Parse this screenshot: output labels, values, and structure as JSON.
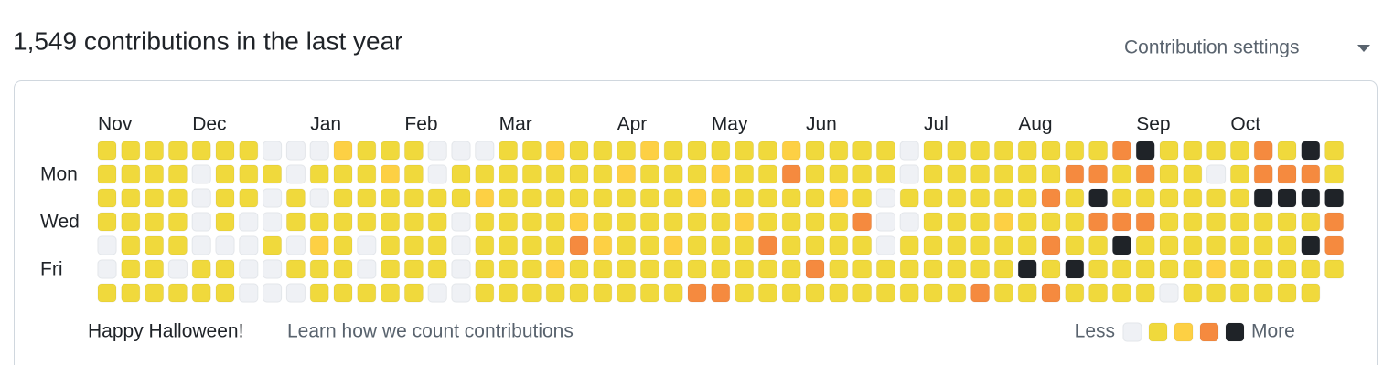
{
  "header": {
    "title": "1,549 contributions in the last year",
    "settings": "Contribution settings"
  },
  "graph": {
    "months": [
      "Nov",
      "Dec",
      "Jan",
      "Feb",
      "Mar",
      "Apr",
      "May",
      "Jun",
      "Jul",
      "Aug",
      "Sep",
      "Oct"
    ],
    "days": [
      "Mon",
      "Wed",
      "Fri"
    ],
    "level_colors": [
      "#eff1f5",
      "#f0d93c",
      "#fdd044",
      "#f58a3f",
      "#1f2328"
    ],
    "rows": [
      [
        1,
        1,
        1,
        1,
        1,
        1,
        1,
        0,
        0,
        0,
        2,
        1,
        1,
        1,
        0,
        0,
        0,
        1,
        1,
        2,
        1,
        1,
        1,
        2,
        1,
        1,
        1,
        1,
        1,
        2,
        1,
        1,
        1,
        1,
        0,
        1,
        1,
        1,
        1,
        1,
        1,
        1,
        1,
        3,
        4,
        1,
        1,
        1,
        1,
        3,
        1,
        4,
        1
      ],
      [
        1,
        1,
        1,
        1,
        0,
        1,
        1,
        1,
        0,
        1,
        1,
        1,
        2,
        1,
        0,
        1,
        1,
        1,
        1,
        1,
        1,
        1,
        2,
        1,
        1,
        1,
        2,
        1,
        1,
        3,
        1,
        1,
        1,
        1,
        0,
        1,
        1,
        1,
        1,
        1,
        1,
        3,
        3,
        1,
        3,
        1,
        1,
        0,
        1,
        3,
        3,
        3,
        1
      ],
      [
        1,
        1,
        1,
        1,
        0,
        1,
        1,
        0,
        1,
        0,
        1,
        1,
        1,
        1,
        1,
        1,
        2,
        1,
        1,
        1,
        1,
        1,
        1,
        1,
        1,
        2,
        1,
        1,
        1,
        1,
        1,
        2,
        1,
        0,
        1,
        1,
        1,
        1,
        1,
        1,
        3,
        1,
        4,
        1,
        1,
        1,
        1,
        1,
        1,
        4,
        4,
        4,
        4
      ],
      [
        1,
        1,
        1,
        1,
        0,
        1,
        0,
        0,
        1,
        1,
        1,
        1,
        1,
        1,
        1,
        0,
        1,
        1,
        1,
        1,
        2,
        1,
        1,
        1,
        1,
        1,
        1,
        2,
        1,
        1,
        1,
        1,
        3,
        0,
        0,
        1,
        1,
        1,
        2,
        1,
        1,
        1,
        3,
        3,
        3,
        1,
        1,
        1,
        1,
        1,
        1,
        1,
        3
      ],
      [
        0,
        1,
        1,
        1,
        0,
        0,
        0,
        1,
        0,
        2,
        1,
        0,
        1,
        1,
        1,
        0,
        1,
        1,
        1,
        1,
        3,
        2,
        1,
        1,
        2,
        1,
        1,
        1,
        3,
        1,
        1,
        1,
        1,
        0,
        1,
        1,
        1,
        1,
        1,
        1,
        3,
        1,
        1,
        4,
        1,
        1,
        1,
        1,
        1,
        1,
        1,
        4,
        3
      ],
      [
        0,
        1,
        1,
        0,
        1,
        1,
        0,
        0,
        1,
        1,
        1,
        0,
        1,
        1,
        1,
        0,
        1,
        1,
        1,
        2,
        1,
        1,
        1,
        1,
        1,
        1,
        1,
        1,
        1,
        1,
        3,
        1,
        1,
        1,
        1,
        1,
        1,
        1,
        1,
        4,
        1,
        4,
        1,
        1,
        1,
        1,
        1,
        2,
        1,
        1,
        1,
        1,
        1
      ],
      [
        1,
        1,
        1,
        1,
        1,
        1,
        0,
        0,
        0,
        1,
        1,
        1,
        1,
        1,
        0,
        0,
        1,
        1,
        1,
        1,
        1,
        1,
        1,
        1,
        1,
        3,
        3,
        1,
        1,
        1,
        1,
        1,
        1,
        1,
        1,
        1,
        1,
        3,
        1,
        1,
        3,
        1,
        1,
        1,
        1,
        0,
        1,
        1,
        1,
        1,
        1,
        1,
        null
      ]
    ]
  },
  "footer": {
    "message": "Happy Halloween!",
    "link": "Learn how we count contributions",
    "legend_less": "Less",
    "legend_more": "More"
  }
}
